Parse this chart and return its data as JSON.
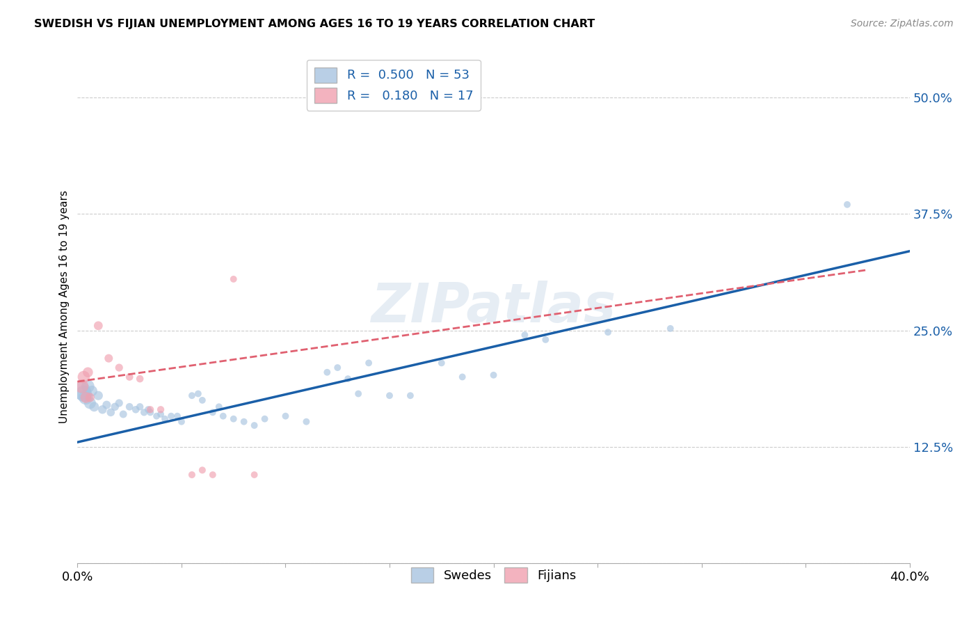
{
  "title": "SWEDISH VS FIJIAN UNEMPLOYMENT AMONG AGES 16 TO 19 YEARS CORRELATION CHART",
  "source": "Source: ZipAtlas.com",
  "ylabel_label": "Unemployment Among Ages 16 to 19 years",
  "xlim": [
    0.0,
    0.4
  ],
  "ylim": [
    0.0,
    0.55
  ],
  "x_ticks": [
    0.0,
    0.05,
    0.1,
    0.15,
    0.2,
    0.25,
    0.3,
    0.35,
    0.4
  ],
  "y_ticks": [
    0.0,
    0.125,
    0.25,
    0.375,
    0.5
  ],
  "y_tick_labels": [
    "",
    "12.5%",
    "25.0%",
    "37.5%",
    "50.0%"
  ],
  "grid_color": "#cccccc",
  "background_color": "#ffffff",
  "watermark": "ZIPatlas",
  "legend_R_swedish": "0.500",
  "legend_N_swedish": "53",
  "legend_R_fijian": "0.180",
  "legend_N_fijian": "17",
  "swedish_color": "#a8c4e0",
  "fijian_color": "#f0a0b0",
  "swedish_line_color": "#1a5fa8",
  "fijian_line_color": "#e06070",
  "swedish_line": [
    0.0,
    0.13,
    0.4,
    0.335
  ],
  "fijian_line": [
    0.0,
    0.195,
    0.38,
    0.315
  ],
  "swedish_points": [
    [
      0.002,
      0.185
    ],
    [
      0.003,
      0.182
    ],
    [
      0.004,
      0.178
    ],
    [
      0.005,
      0.19
    ],
    [
      0.006,
      0.172
    ],
    [
      0.007,
      0.185
    ],
    [
      0.008,
      0.168
    ],
    [
      0.01,
      0.18
    ],
    [
      0.012,
      0.165
    ],
    [
      0.014,
      0.17
    ],
    [
      0.016,
      0.162
    ],
    [
      0.018,
      0.168
    ],
    [
      0.02,
      0.172
    ],
    [
      0.022,
      0.16
    ],
    [
      0.025,
      0.168
    ],
    [
      0.028,
      0.165
    ],
    [
      0.03,
      0.168
    ],
    [
      0.032,
      0.162
    ],
    [
      0.034,
      0.165
    ],
    [
      0.035,
      0.162
    ],
    [
      0.038,
      0.158
    ],
    [
      0.04,
      0.16
    ],
    [
      0.042,
      0.155
    ],
    [
      0.045,
      0.158
    ],
    [
      0.048,
      0.158
    ],
    [
      0.05,
      0.152
    ],
    [
      0.055,
      0.18
    ],
    [
      0.058,
      0.182
    ],
    [
      0.06,
      0.175
    ],
    [
      0.065,
      0.162
    ],
    [
      0.068,
      0.168
    ],
    [
      0.07,
      0.158
    ],
    [
      0.075,
      0.155
    ],
    [
      0.08,
      0.152
    ],
    [
      0.085,
      0.148
    ],
    [
      0.09,
      0.155
    ],
    [
      0.1,
      0.158
    ],
    [
      0.11,
      0.152
    ],
    [
      0.12,
      0.205
    ],
    [
      0.125,
      0.21
    ],
    [
      0.13,
      0.198
    ],
    [
      0.135,
      0.182
    ],
    [
      0.14,
      0.215
    ],
    [
      0.15,
      0.18
    ],
    [
      0.16,
      0.18
    ],
    [
      0.175,
      0.215
    ],
    [
      0.185,
      0.2
    ],
    [
      0.2,
      0.202
    ],
    [
      0.215,
      0.245
    ],
    [
      0.225,
      0.24
    ],
    [
      0.255,
      0.248
    ],
    [
      0.285,
      0.252
    ],
    [
      0.37,
      0.385
    ]
  ],
  "fijian_points": [
    [
      0.002,
      0.19
    ],
    [
      0.003,
      0.2
    ],
    [
      0.004,
      0.178
    ],
    [
      0.005,
      0.205
    ],
    [
      0.006,
      0.178
    ],
    [
      0.01,
      0.255
    ],
    [
      0.015,
      0.22
    ],
    [
      0.02,
      0.21
    ],
    [
      0.025,
      0.2
    ],
    [
      0.03,
      0.198
    ],
    [
      0.035,
      0.165
    ],
    [
      0.04,
      0.165
    ],
    [
      0.055,
      0.095
    ],
    [
      0.06,
      0.1
    ],
    [
      0.065,
      0.095
    ],
    [
      0.075,
      0.305
    ],
    [
      0.085,
      0.095
    ]
  ],
  "swedish_bubble_sizes": [
    350,
    280,
    220,
    180,
    150,
    120,
    100,
    90,
    80,
    75,
    70,
    68,
    65,
    62,
    60,
    58,
    56,
    55,
    54,
    52,
    50,
    50,
    50,
    50,
    50,
    50,
    50,
    50,
    50,
    50,
    50,
    50,
    50,
    50,
    50,
    50,
    50,
    50,
    50,
    50,
    50,
    50,
    50,
    50,
    50,
    50,
    50,
    50,
    50,
    50,
    50,
    50,
    50
  ],
  "fijian_bubble_sizes": [
    200,
    160,
    130,
    110,
    90,
    85,
    75,
    65,
    60,
    58,
    55,
    55,
    52,
    52,
    50,
    50,
    50
  ]
}
